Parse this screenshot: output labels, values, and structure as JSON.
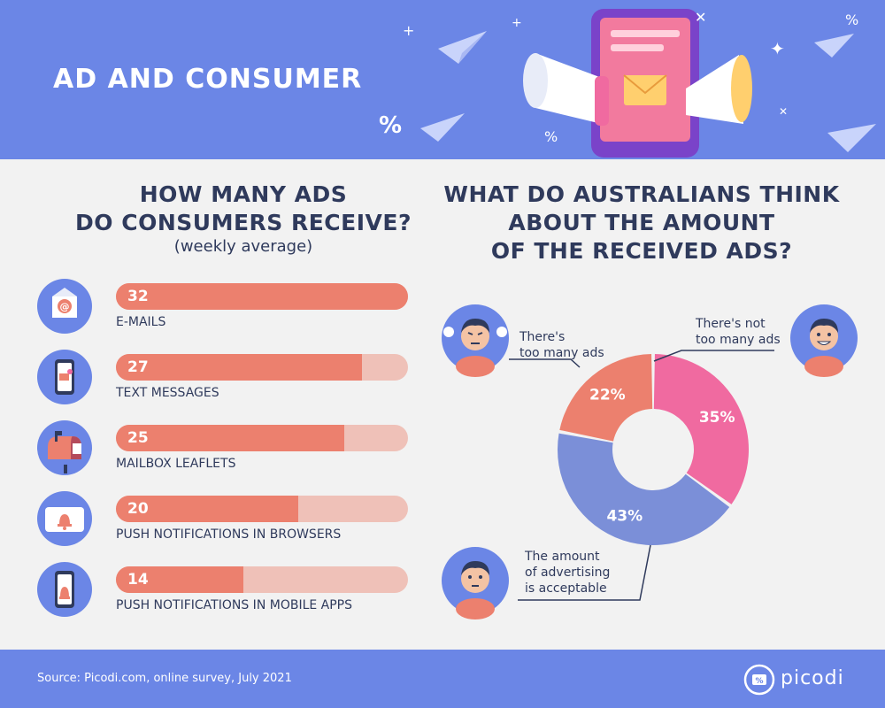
{
  "header": {
    "title": "AD AND CONSUMER"
  },
  "left": {
    "title_line1": "HOW MANY ADS",
    "title_line2": "DO CONSUMERS RECEIVE?",
    "subtitle": "(weekly average)"
  },
  "right": {
    "title_line1": "WHAT DO AUSTRALIANS THINK",
    "title_line2": "ABOUT THE AMOUNT",
    "title_line3": "OF THE RECEIVED ADS?"
  },
  "chart_data": [
    {
      "type": "bar",
      "orientation": "horizontal",
      "title": "HOW MANY ADS DO CONSUMERS RECEIVE?",
      "subtitle": "(weekly average)",
      "categories": [
        "E-MAILS",
        "TEXT MESSAGES",
        "MAILBOX LEAFLETS",
        "PUSH NOTIFICATIONS IN BROWSERS",
        "PUSH NOTIFICATIONS IN MOBILE APPS"
      ],
      "values": [
        32,
        27,
        25,
        20,
        14
      ],
      "value_labels": [
        "32",
        "27",
        "25",
        "20",
        "14"
      ],
      "icons": [
        "email-envelope-icon",
        "smartphone-message-icon",
        "mailbox-icon",
        "browser-bell-icon",
        "mobile-bell-icon"
      ],
      "xlim": [
        0,
        32
      ],
      "colors": {
        "fill": "#ec806e",
        "track": "#efc1b8"
      }
    },
    {
      "type": "pie",
      "variant": "donut",
      "title": "WHAT DO AUSTRALIANS THINK ABOUT THE AMOUNT OF THE RECEIVED ADS?",
      "slices": [
        {
          "label": "There's not too many ads",
          "value": 35,
          "value_label": "35%",
          "color": "#f06aa0",
          "icon": "happy-person-icon"
        },
        {
          "label": "The amount of advertising is acceptable",
          "value": 43,
          "value_label": "43%",
          "color": "#7b8fd8",
          "icon": "neutral-person-icon"
        },
        {
          "label": "There's too many ads",
          "value": 22,
          "value_label": "22%",
          "color": "#ec806e",
          "icon": "angry-person-icon"
        }
      ],
      "callouts": {
        "not_many_line1": "There's not",
        "not_many_line2": "too many ads",
        "too_many_line1": "There's",
        "too_many_line2": "too many ads",
        "acceptable_line1": "The amount",
        "acceptable_line2": "of advertising",
        "acceptable_line3": "is acceptable"
      }
    }
  ],
  "footer": {
    "source": "Source: Picodi.com, online survey, July 2021",
    "logo_text": "picodi"
  }
}
